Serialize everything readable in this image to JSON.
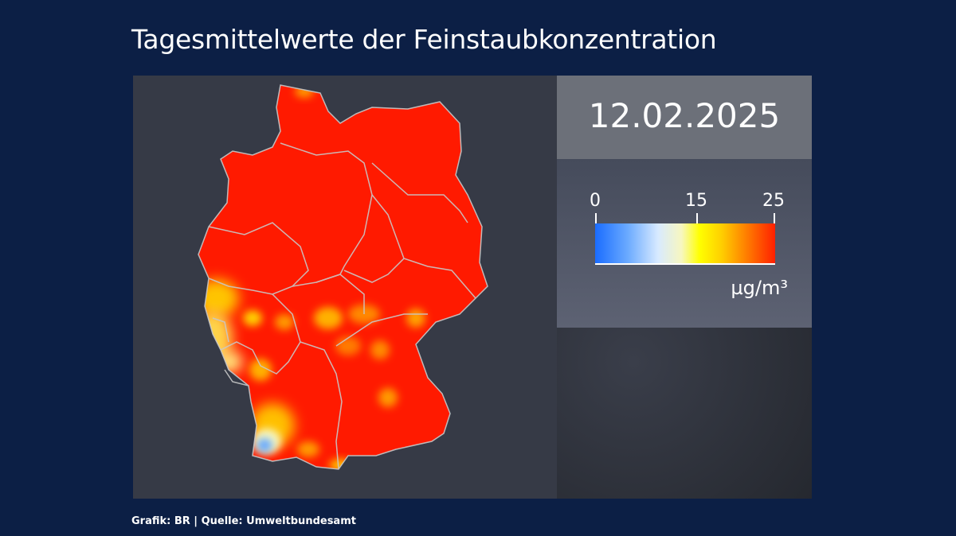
{
  "title": "Tagesmittelwerte der Feinstaubkonzentration",
  "date": "12.02.2025",
  "legend": {
    "ticks": [
      "0",
      "15",
      "25"
    ],
    "unit": "µg/m³",
    "scale": {
      "min": 0,
      "max": 25
    },
    "colors": [
      "#1a6cff",
      "#d8eaff",
      "#ffff00",
      "#ff8a00",
      "#ff2000"
    ]
  },
  "credit": "Grafik: BR | Quelle: Umweltbundesamt",
  "map": {
    "country": "Germany",
    "dominant_color": "#ff1a00",
    "panel_background": "#363a46",
    "page_background": "#0c1f45"
  }
}
